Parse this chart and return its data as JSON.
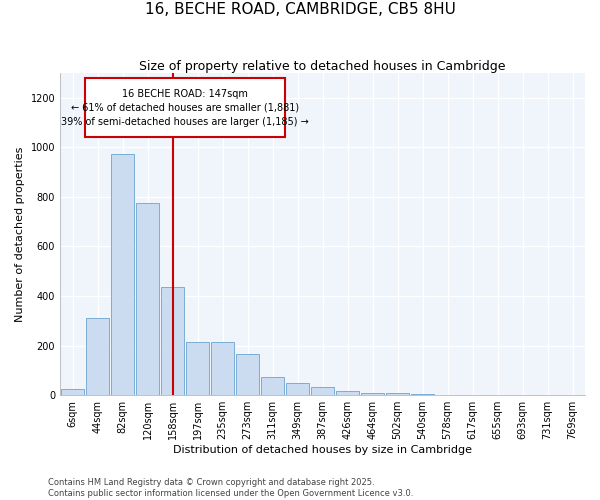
{
  "title": "16, BECHE ROAD, CAMBRIDGE, CB5 8HU",
  "subtitle": "Size of property relative to detached houses in Cambridge",
  "xlabel": "Distribution of detached houses by size in Cambridge",
  "ylabel": "Number of detached properties",
  "bar_color": "#ccdcf0",
  "bar_edge_color": "#7aadd4",
  "categories": [
    "6sqm",
    "44sqm",
    "82sqm",
    "120sqm",
    "158sqm",
    "197sqm",
    "235sqm",
    "273sqm",
    "311sqm",
    "349sqm",
    "387sqm",
    "426sqm",
    "464sqm",
    "502sqm",
    "540sqm",
    "578sqm",
    "617sqm",
    "655sqm",
    "693sqm",
    "731sqm",
    "769sqm"
  ],
  "values": [
    25,
    310,
    975,
    775,
    435,
    215,
    215,
    165,
    75,
    50,
    35,
    15,
    10,
    8,
    5,
    0,
    0,
    0,
    0,
    0,
    2
  ],
  "vline_x": 4.0,
  "vline_color": "#cc0000",
  "annotation_text": "16 BECHE ROAD: 147sqm\n← 61% of detached houses are smaller (1,881)\n39% of semi-detached houses are larger (1,185) →",
  "ylim": [
    0,
    1300
  ],
  "yticks": [
    0,
    200,
    400,
    600,
    800,
    1000,
    1200
  ],
  "footer_text": "Contains HM Land Registry data © Crown copyright and database right 2025.\nContains public sector information licensed under the Open Government Licence v3.0.",
  "background_color": "#ffffff",
  "plot_bg_color": "#f0f4fb",
  "grid_color": "#ffffff",
  "title_fontsize": 11,
  "subtitle_fontsize": 9,
  "axis_label_fontsize": 8,
  "tick_fontsize": 7,
  "footer_fontsize": 6
}
